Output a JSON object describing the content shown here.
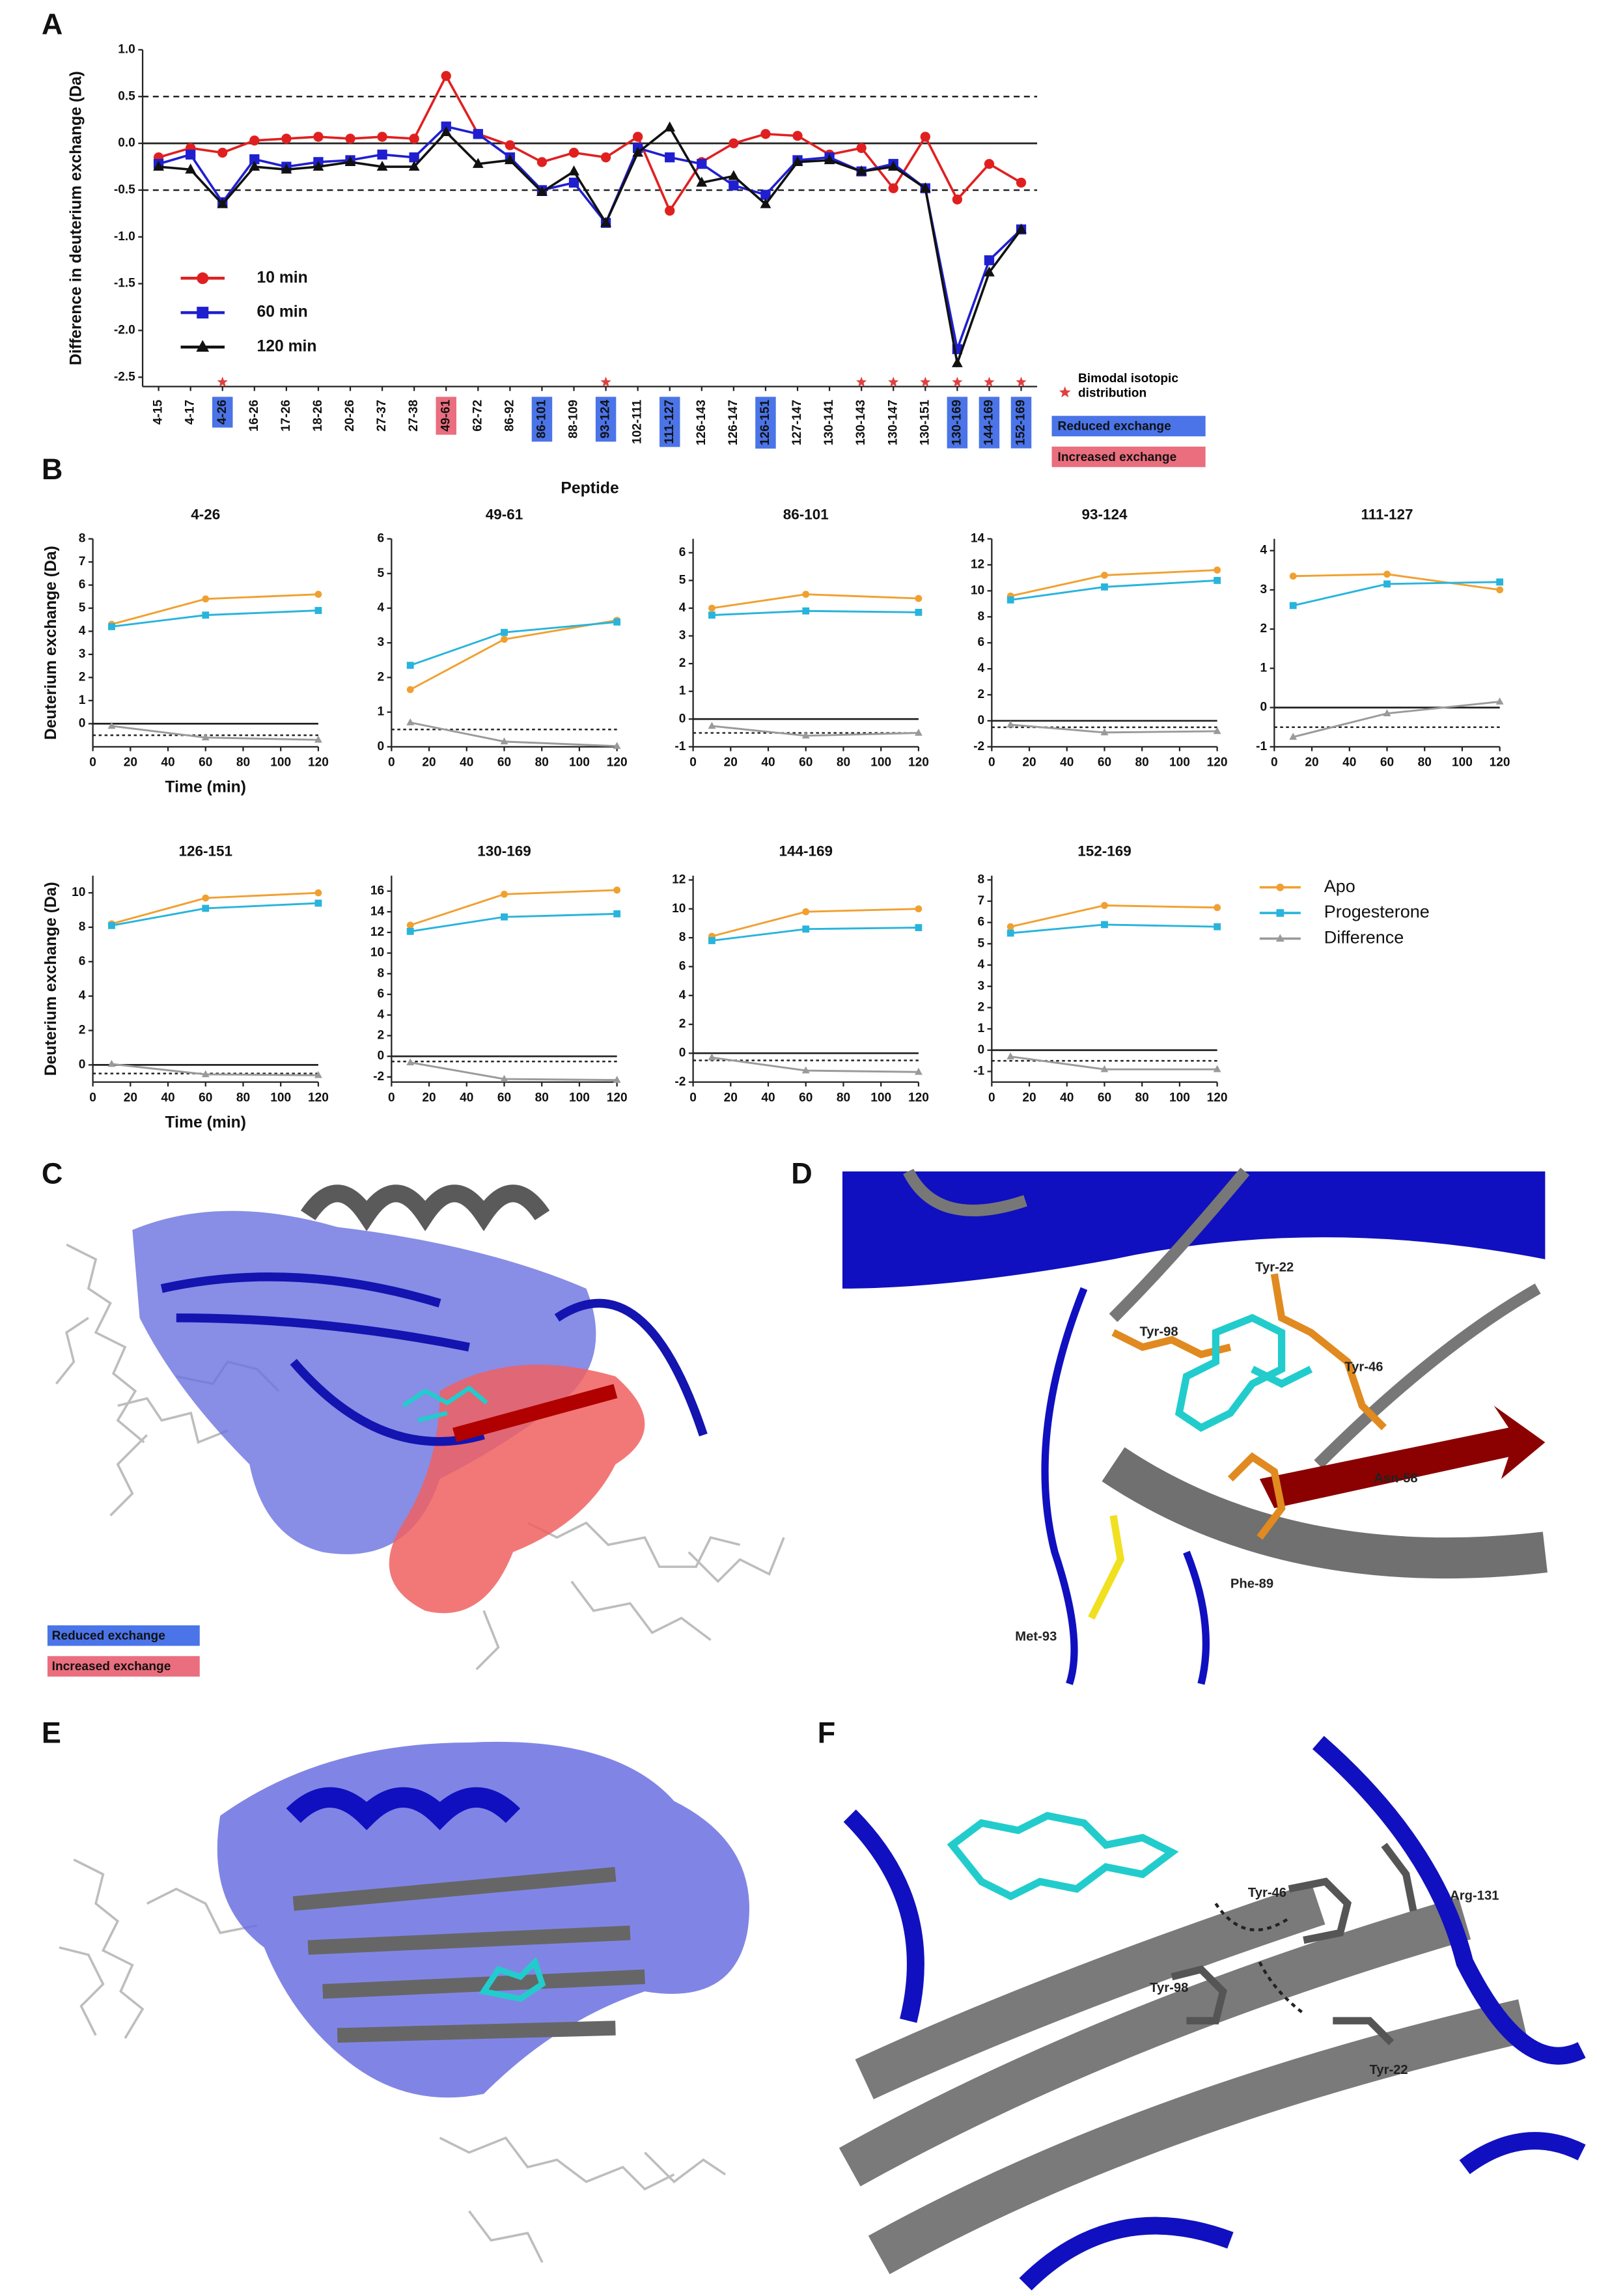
{
  "panel_labels": [
    "A",
    "B",
    "C",
    "D",
    "E",
    "F"
  ],
  "chart_data": [
    {
      "type": "line",
      "ylabel": "Difference in deuterium exchange (Da)",
      "xlabel": "Peptide",
      "categories": [
        "4-15",
        "4-17",
        "4-26",
        "16-26",
        "17-26",
        "18-26",
        "20-26",
        "27-37",
        "27-38",
        "49-61",
        "62-72",
        "86-92",
        "86-101",
        "88-109",
        "93-124",
        "102-111",
        "111-127",
        "126-143",
        "126-147",
        "126-151",
        "127-147",
        "130-141",
        "130-143",
        "130-147",
        "130-151",
        "130-169",
        "144-169",
        "152-169"
      ],
      "series": [
        {
          "name": "10 min",
          "color": "#e02020",
          "marker": "circle",
          "values": [
            -0.15,
            -0.05,
            -0.1,
            0.03,
            0.05,
            0.07,
            0.05,
            0.07,
            0.05,
            0.72,
            0.1,
            -0.02,
            -0.2,
            -0.1,
            -0.15,
            0.07,
            -0.72,
            -0.2,
            0.0,
            0.1,
            0.08,
            -0.12,
            -0.05,
            -0.48,
            0.07,
            -0.6,
            -0.22,
            -0.42
          ]
        },
        {
          "name": "60 min",
          "color": "#1f1fd0",
          "marker": "square",
          "values": [
            -0.22,
            -0.12,
            -0.63,
            -0.17,
            -0.25,
            -0.2,
            -0.18,
            -0.12,
            -0.15,
            0.18,
            0.1,
            -0.15,
            -0.5,
            -0.42,
            -0.85,
            -0.05,
            -0.15,
            -0.22,
            -0.45,
            -0.55,
            -0.18,
            -0.15,
            -0.3,
            -0.22,
            -0.48,
            -2.2,
            -1.25,
            -0.92
          ]
        },
        {
          "name": "120 min",
          "color": "#111111",
          "marker": "triangle",
          "values": [
            -0.25,
            -0.28,
            -0.65,
            -0.25,
            -0.28,
            -0.25,
            -0.2,
            -0.25,
            -0.25,
            0.12,
            -0.22,
            -0.18,
            -0.52,
            -0.3,
            -0.85,
            -0.1,
            0.17,
            -0.42,
            -0.35,
            -0.65,
            -0.2,
            -0.18,
            -0.3,
            -0.25,
            -0.48,
            -2.35,
            -1.38,
            -0.92
          ]
        }
      ],
      "ylim": [
        -2.6,
        1.0
      ],
      "yticks": [
        {
          "value": 1,
          "label": "1.0"
        },
        0.5,
        {
          "value": 0,
          "label": "0.0"
        },
        -0.5,
        {
          "value": -1,
          "label": "-1.0"
        },
        -1.5,
        {
          "value": -2,
          "label": "-2.0"
        },
        -2.5
      ],
      "hlines": [
        0.5,
        -0.5
      ],
      "legend": "lower left",
      "label_colors": [
        null,
        null,
        "#4a74e8",
        null,
        null,
        null,
        null,
        null,
        null,
        "#ea6e7e",
        null,
        null,
        "#4a74e8",
        null,
        "#4a74e8",
        null,
        "#4a74e8",
        null,
        null,
        "#4a74e8",
        null,
        null,
        null,
        null,
        null,
        "#4a74e8",
        "#4a74e8",
        "#4a74e8"
      ],
      "bimodal": [
        false,
        false,
        true,
        false,
        false,
        false,
        false,
        false,
        false,
        false,
        false,
        false,
        false,
        false,
        true,
        false,
        false,
        false,
        false,
        false,
        false,
        false,
        true,
        true,
        true,
        true,
        true,
        true
      ],
      "star_color": "#e04040",
      "bimodal_label": "Bimodal isotopic distribution",
      "highlight_legend": [
        {
          "label": "Reduced exchange",
          "color": "#4a74e8"
        },
        {
          "label": "Increased exchange",
          "color": "#ea6e7e"
        }
      ]
    },
    {
      "type": "line",
      "title": "4-26",
      "ylabel": "Deuterium exchange (Da)",
      "xlabel": "Time (min)",
      "x": [
        10,
        60,
        120
      ],
      "xlim": [
        0,
        120
      ],
      "xticks": [
        0,
        20,
        40,
        60,
        80,
        100,
        120
      ],
      "ylim": [
        -1,
        8
      ],
      "yticks": [
        0,
        1,
        2,
        3,
        4,
        5,
        6,
        7,
        8
      ],
      "hlines": [
        -0.5
      ],
      "series": [
        {
          "name": "Apo",
          "color": "#f0a030",
          "marker": "circle",
          "values": [
            4.3,
            5.4,
            5.6
          ]
        },
        {
          "name": "Progesterone",
          "color": "#28b4dc",
          "marker": "square",
          "values": [
            4.2,
            4.7,
            4.9
          ]
        },
        {
          "name": "Difference",
          "color": "#9a9a9a",
          "marker": "triangle",
          "values": [
            -0.1,
            -0.6,
            -0.7
          ]
        }
      ]
    },
    {
      "type": "line",
      "title": "49-61",
      "x": [
        10,
        60,
        120
      ],
      "xlim": [
        0,
        120
      ],
      "xticks": [
        0,
        20,
        40,
        60,
        80,
        100,
        120
      ],
      "ylim": [
        0,
        6
      ],
      "yticks": [
        0,
        1,
        2,
        3,
        4,
        5,
        6
      ],
      "hlines": [
        0.5
      ],
      "series": [
        {
          "name": "Apo",
          "color": "#f0a030",
          "marker": "circle",
          "values": [
            1.65,
            3.1,
            3.65
          ]
        },
        {
          "name": "Progesterone",
          "color": "#28b4dc",
          "marker": "square",
          "values": [
            2.35,
            3.3,
            3.6
          ]
        },
        {
          "name": "Difference",
          "color": "#9a9a9a",
          "marker": "triangle",
          "values": [
            0.7,
            0.15,
            0.02
          ]
        }
      ]
    },
    {
      "type": "line",
      "title": "86-101",
      "x": [
        10,
        60,
        120
      ],
      "xlim": [
        0,
        120
      ],
      "xticks": [
        0,
        20,
        40,
        60,
        80,
        100,
        120
      ],
      "ylim": [
        -1,
        6.5
      ],
      "yticks": [
        -1,
        0,
        1,
        2,
        3,
        4,
        5,
        6
      ],
      "hlines": [
        -0.5
      ],
      "series": [
        {
          "name": "Apo",
          "color": "#f0a030",
          "marker": "circle",
          "values": [
            4.0,
            4.5,
            4.35
          ]
        },
        {
          "name": "Progesterone",
          "color": "#28b4dc",
          "marker": "square",
          "values": [
            3.75,
            3.9,
            3.85
          ]
        },
        {
          "name": "Difference",
          "color": "#9a9a9a",
          "marker": "triangle",
          "values": [
            -0.25,
            -0.6,
            -0.5
          ]
        }
      ]
    },
    {
      "type": "line",
      "title": "93-124",
      "x": [
        10,
        60,
        120
      ],
      "xlim": [
        0,
        120
      ],
      "xticks": [
        0,
        20,
        40,
        60,
        80,
        100,
        120
      ],
      "ylim": [
        -2,
        14
      ],
      "yticks": [
        -2,
        0,
        2,
        4,
        6,
        8,
        10,
        12,
        14
      ],
      "hlines": [
        -0.5
      ],
      "series": [
        {
          "name": "Apo",
          "color": "#f0a030",
          "marker": "circle",
          "values": [
            9.6,
            11.2,
            11.6
          ]
        },
        {
          "name": "Progesterone",
          "color": "#28b4dc",
          "marker": "square",
          "values": [
            9.3,
            10.3,
            10.8
          ]
        },
        {
          "name": "Difference",
          "color": "#9a9a9a",
          "marker": "triangle",
          "values": [
            -0.3,
            -0.9,
            -0.8
          ]
        }
      ]
    },
    {
      "type": "line",
      "title": "111-127",
      "x": [
        10,
        60,
        120
      ],
      "xlim": [
        0,
        120
      ],
      "xticks": [
        0,
        20,
        40,
        60,
        80,
        100,
        120
      ],
      "ylim": [
        -1,
        4.3
      ],
      "yticks": [
        -1,
        0,
        1,
        2,
        3,
        4
      ],
      "hlines": [
        -0.5
      ],
      "series": [
        {
          "name": "Apo",
          "color": "#f0a030",
          "marker": "circle",
          "values": [
            3.35,
            3.4,
            3.0
          ]
        },
        {
          "name": "Progesterone",
          "color": "#28b4dc",
          "marker": "square",
          "values": [
            2.6,
            3.15,
            3.2
          ]
        },
        {
          "name": "Difference",
          "color": "#9a9a9a",
          "marker": "triangle",
          "values": [
            -0.75,
            -0.15,
            0.15
          ]
        }
      ]
    },
    {
      "type": "line",
      "title": "126-151",
      "ylabel": "Deuterium exchange (Da)",
      "xlabel": "Time (min)",
      "x": [
        10,
        60,
        120
      ],
      "xlim": [
        0,
        120
      ],
      "xticks": [
        0,
        20,
        40,
        60,
        80,
        100,
        120
      ],
      "ylim": [
        -1,
        11
      ],
      "yticks": [
        0,
        2,
        4,
        6,
        8,
        10
      ],
      "hlines": [
        -0.5
      ],
      "series": [
        {
          "name": "Apo",
          "color": "#f0a030",
          "marker": "circle",
          "values": [
            8.2,
            9.7,
            10.0
          ]
        },
        {
          "name": "Progesterone",
          "color": "#28b4dc",
          "marker": "square",
          "values": [
            8.1,
            9.1,
            9.4
          ]
        },
        {
          "name": "Difference",
          "color": "#9a9a9a",
          "marker": "triangle",
          "values": [
            0.05,
            -0.55,
            -0.6
          ]
        }
      ]
    },
    {
      "type": "line",
      "title": "130-169",
      "x": [
        10,
        60,
        120
      ],
      "xlim": [
        0,
        120
      ],
      "xticks": [
        0,
        20,
        40,
        60,
        80,
        100,
        120
      ],
      "ylim": [
        -2.5,
        17.5
      ],
      "yticks": [
        -2,
        0,
        2,
        4,
        6,
        8,
        10,
        12,
        14,
        16
      ],
      "hlines": [
        -0.5
      ],
      "series": [
        {
          "name": "Apo",
          "color": "#f0a030",
          "marker": "circle",
          "values": [
            12.7,
            15.7,
            16.1
          ]
        },
        {
          "name": "Progesterone",
          "color": "#28b4dc",
          "marker": "square",
          "values": [
            12.1,
            13.5,
            13.8
          ]
        },
        {
          "name": "Difference",
          "color": "#9a9a9a",
          "marker": "triangle",
          "values": [
            -0.6,
            -2.2,
            -2.3
          ]
        }
      ]
    },
    {
      "type": "line",
      "title": "144-169",
      "x": [
        10,
        60,
        120
      ],
      "xlim": [
        0,
        120
      ],
      "xticks": [
        0,
        20,
        40,
        60,
        80,
        100,
        120
      ],
      "ylim": [
        -2,
        12.3
      ],
      "yticks": [
        -2,
        0,
        2,
        4,
        6,
        8,
        10,
        12
      ],
      "hlines": [
        -0.5
      ],
      "series": [
        {
          "name": "Apo",
          "color": "#f0a030",
          "marker": "circle",
          "values": [
            8.1,
            9.8,
            10.0
          ]
        },
        {
          "name": "Progesterone",
          "color": "#28b4dc",
          "marker": "square",
          "values": [
            7.8,
            8.6,
            8.7
          ]
        },
        {
          "name": "Difference",
          "color": "#9a9a9a",
          "marker": "triangle",
          "values": [
            -0.3,
            -1.2,
            -1.3
          ]
        }
      ]
    },
    {
      "type": "line",
      "title": "152-169",
      "x": [
        10,
        60,
        120
      ],
      "xlim": [
        0,
        120
      ],
      "xticks": [
        0,
        20,
        40,
        60,
        80,
        100,
        120
      ],
      "ylim": [
        -1.5,
        8.2
      ],
      "yticks": [
        -1,
        0,
        1,
        2,
        3,
        4,
        5,
        6,
        7,
        8
      ],
      "hlines": [
        -0.5
      ],
      "legend": "right",
      "series": [
        {
          "name": "Apo",
          "color": "#f0a030",
          "marker": "circle",
          "values": [
            5.8,
            6.8,
            6.7
          ]
        },
        {
          "name": "Progesterone",
          "color": "#28b4dc",
          "marker": "square",
          "values": [
            5.5,
            5.9,
            5.8
          ]
        },
        {
          "name": "Difference",
          "color": "#9a9a9a",
          "marker": "triangle",
          "values": [
            -0.3,
            -0.9,
            -0.9
          ]
        }
      ]
    }
  ],
  "structures": {
    "C": {
      "legend": [
        {
          "label": "Reduced exchange",
          "color": "#4a74e8"
        },
        {
          "label": "Increased exchange",
          "color": "#ea6e7e"
        }
      ]
    },
    "D": {
      "labels": [
        "Tyr-22",
        "Tyr-98",
        "Tyr-46",
        "Asn-58",
        "Phe-89",
        "Met-93"
      ]
    },
    "F": {
      "labels": [
        "Tyr-46",
        "Arg-131",
        "Tyr-98",
        "Tyr-22"
      ]
    }
  }
}
